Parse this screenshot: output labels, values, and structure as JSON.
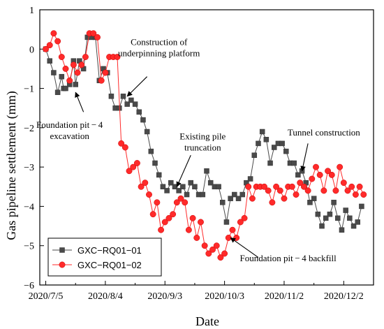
{
  "chart_data": {
    "type": "line",
    "xlabel": "Date",
    "ylabel": "Gas pipeline settlement  (mm)",
    "ylim": [
      -6,
      1
    ],
    "y_ticks": [
      1,
      0,
      -1,
      -2,
      -3,
      -4,
      -5,
      -6
    ],
    "x_ticks": [
      {
        "value": 0,
        "label": "2020/7/5"
      },
      {
        "value": 30,
        "label": "2020/8/4"
      },
      {
        "value": 60,
        "label": "2020/9/3"
      },
      {
        "value": 90,
        "label": "2020/10/3"
      },
      {
        "value": 120,
        "label": "2020/11/2"
      },
      {
        "value": 150,
        "label": "2020/12/2"
      }
    ],
    "xlim": [
      -3,
      165
    ],
    "x_unit": "days after 2020/7/5",
    "legend_position": "bottom-left",
    "series": [
      {
        "name": "GXC−RQ01−01",
        "color": "#4a4a4a",
        "marker": "square",
        "points": [
          [
            0,
            0
          ],
          [
            2,
            -0.3
          ],
          [
            4,
            -0.6
          ],
          [
            6,
            -1.1
          ],
          [
            8,
            -0.7
          ],
          [
            9,
            -1.0
          ],
          [
            10,
            -1.0
          ],
          [
            12,
            -0.9
          ],
          [
            14,
            -0.3
          ],
          [
            15,
            -0.9
          ],
          [
            17,
            -0.3
          ],
          [
            19,
            -0.5
          ],
          [
            21,
            0.3
          ],
          [
            23,
            0.3
          ],
          [
            25,
            0.3
          ],
          [
            27,
            -0.8
          ],
          [
            29,
            -0.5
          ],
          [
            31,
            -0.6
          ],
          [
            33,
            -1.2
          ],
          [
            35,
            -1.5
          ],
          [
            37,
            -1.5
          ],
          [
            39,
            -1.2
          ],
          [
            41,
            -1.4
          ],
          [
            43,
            -1.3
          ],
          [
            45,
            -1.4
          ],
          [
            47,
            -1.6
          ],
          [
            49,
            -1.8
          ],
          [
            51,
            -2.1
          ],
          [
            53,
            -2.6
          ],
          [
            55,
            -2.9
          ],
          [
            57,
            -3.2
          ],
          [
            59,
            -3.5
          ],
          [
            61,
            -3.6
          ],
          [
            63,
            -3.4
          ],
          [
            65,
            -3.5
          ],
          [
            67,
            -3.6
          ],
          [
            69,
            -3.5
          ],
          [
            71,
            -3.7
          ],
          [
            73,
            -3.4
          ],
          [
            75,
            -3.5
          ],
          [
            77,
            -3.7
          ],
          [
            79,
            -3.7
          ],
          [
            81,
            -3.1
          ],
          [
            83,
            -3.4
          ],
          [
            85,
            -3.5
          ],
          [
            87,
            -3.5
          ],
          [
            89,
            -3.9
          ],
          [
            91,
            -4.4
          ],
          [
            93,
            -3.8
          ],
          [
            95,
            -3.7
          ],
          [
            97,
            -3.8
          ],
          [
            99,
            -3.7
          ],
          [
            101,
            -3.4
          ],
          [
            103,
            -3.3
          ],
          [
            105,
            -2.7
          ],
          [
            107,
            -2.4
          ],
          [
            109,
            -2.1
          ],
          [
            111,
            -2.3
          ],
          [
            113,
            -2.9
          ],
          [
            115,
            -2.5
          ],
          [
            117,
            -2.4
          ],
          [
            119,
            -2.4
          ],
          [
            121,
            -2.6
          ],
          [
            123,
            -2.9
          ],
          [
            125,
            -2.9
          ],
          [
            127,
            -3.2
          ],
          [
            129,
            -3.1
          ],
          [
            131,
            -3.4
          ],
          [
            133,
            -3.9
          ],
          [
            135,
            -3.8
          ],
          [
            137,
            -4.2
          ],
          [
            139,
            -4.5
          ],
          [
            141,
            -4.3
          ],
          [
            143,
            -4.2
          ],
          [
            145,
            -3.9
          ],
          [
            147,
            -4.3
          ],
          [
            149,
            -4.6
          ],
          [
            151,
            -4.1
          ],
          [
            153,
            -4.3
          ],
          [
            155,
            -4.5
          ],
          [
            157,
            -4.4
          ],
          [
            159,
            -4.0
          ]
        ]
      },
      {
        "name": "GXC−RQ01−02",
        "color": "#ff2a2a",
        "marker": "circle",
        "points": [
          [
            0,
            0
          ],
          [
            2,
            0.1
          ],
          [
            4,
            0.4
          ],
          [
            6,
            0.2
          ],
          [
            8,
            -0.2
          ],
          [
            10,
            -0.5
          ],
          [
            12,
            -0.8
          ],
          [
            14,
            -0.4
          ],
          [
            16,
            -0.6
          ],
          [
            18,
            -0.4
          ],
          [
            20,
            -0.2
          ],
          [
            22,
            0.4
          ],
          [
            24,
            0.4
          ],
          [
            26,
            0.3
          ],
          [
            28,
            -0.8
          ],
          [
            30,
            -0.6
          ],
          [
            32,
            -0.2
          ],
          [
            34,
            -0.2
          ],
          [
            36,
            -0.2
          ],
          [
            38,
            -2.4
          ],
          [
            40,
            -2.5
          ],
          [
            42,
            -3.1
          ],
          [
            44,
            -3.0
          ],
          [
            46,
            -2.9
          ],
          [
            48,
            -3.5
          ],
          [
            50,
            -3.4
          ],
          [
            52,
            -3.7
          ],
          [
            54,
            -4.2
          ],
          [
            56,
            -3.9
          ],
          [
            58,
            -4.6
          ],
          [
            60,
            -4.4
          ],
          [
            62,
            -4.3
          ],
          [
            64,
            -4.2
          ],
          [
            66,
            -3.9
          ],
          [
            68,
            -3.8
          ],
          [
            70,
            -3.9
          ],
          [
            72,
            -4.6
          ],
          [
            74,
            -4.3
          ],
          [
            76,
            -4.8
          ],
          [
            78,
            -4.4
          ],
          [
            80,
            -5.0
          ],
          [
            82,
            -5.2
          ],
          [
            84,
            -5.1
          ],
          [
            86,
            -5.0
          ],
          [
            88,
            -5.3
          ],
          [
            90,
            -5.2
          ],
          [
            92,
            -4.8
          ],
          [
            94,
            -4.6
          ],
          [
            96,
            -4.8
          ],
          [
            98,
            -4.4
          ],
          [
            100,
            -4.3
          ],
          [
            102,
            -3.5
          ],
          [
            104,
            -3.8
          ],
          [
            106,
            -3.5
          ],
          [
            108,
            -3.5
          ],
          [
            110,
            -3.5
          ],
          [
            112,
            -3.6
          ],
          [
            114,
            -3.9
          ],
          [
            116,
            -3.5
          ],
          [
            118,
            -3.6
          ],
          [
            120,
            -3.8
          ],
          [
            122,
            -3.5
          ],
          [
            124,
            -3.5
          ],
          [
            126,
            -3.7
          ],
          [
            128,
            -3.4
          ],
          [
            130,
            -3.5
          ],
          [
            132,
            -3.6
          ],
          [
            134,
            -3.3
          ],
          [
            136,
            -3.0
          ],
          [
            138,
            -3.2
          ],
          [
            140,
            -3.6
          ],
          [
            142,
            -3.1
          ],
          [
            144,
            -3.2
          ],
          [
            146,
            -3.6
          ],
          [
            148,
            -3.0
          ],
          [
            150,
            -3.4
          ],
          [
            152,
            -3.6
          ],
          [
            154,
            -3.5
          ],
          [
            156,
            -3.7
          ],
          [
            158,
            -3.5
          ],
          [
            160,
            -3.7
          ]
        ]
      }
    ],
    "annotations": [
      {
        "lines": [
          "Construction of",
          "underpinning platform"
        ],
        "text_day": 57,
        "text_y": 0.1,
        "arrow_from": [
          51,
          -0.7
        ],
        "arrow_to": [
          41,
          -1.2
        ]
      },
      {
        "lines": [
          "Foundation pit − 4",
          "excavation"
        ],
        "text_day": 12,
        "text_y": -2.0,
        "arrow_from": [
          19,
          -1.6
        ],
        "arrow_to": [
          15,
          -1.1
        ]
      },
      {
        "lines": [
          "Existing pile",
          "truncation"
        ],
        "text_day": 79,
        "text_y": -2.3,
        "arrow_from": [
          73,
          -2.7
        ],
        "arrow_to": [
          66,
          -3.5
        ]
      },
      {
        "lines": [
          "Tunnel construction"
        ],
        "text_day": 140,
        "text_y": -2.2,
        "arrow_from": [
          132,
          -2.4
        ],
        "arrow_to": [
          129,
          -3.1
        ]
      },
      {
        "lines": [
          "Foundation pit − 4 backfill"
        ],
        "text_day": 122,
        "text_y": -5.4,
        "arrow_from": [
          107,
          -5.3
        ],
        "arrow_to": [
          93,
          -4.8
        ]
      }
    ]
  }
}
